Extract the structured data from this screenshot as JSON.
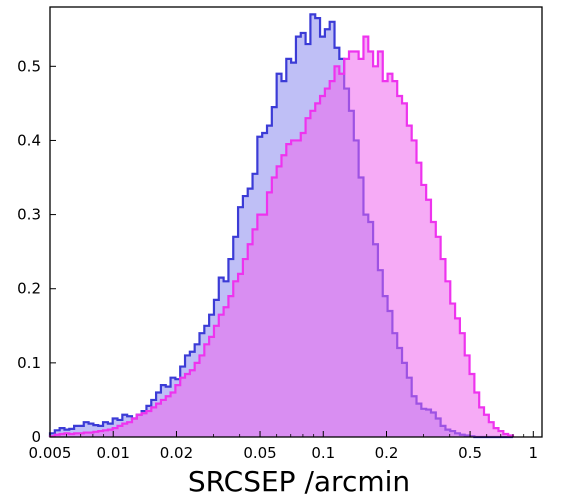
{
  "chart_data": {
    "type": "histogram",
    "x_scale": "log",
    "xlabel": "SRCSEP /arcmin",
    "ylabel": "",
    "xlim": [
      0.005,
      1.1
    ],
    "ylim": [
      0,
      0.58
    ],
    "x_ticks": [
      0.005,
      0.01,
      0.02,
      0.05,
      0.1,
      0.2,
      0.5,
      1
    ],
    "x_tick_labels": [
      "0.005",
      "0.01",
      "0.02",
      "0.05",
      "0.1",
      "0.2",
      "0.5",
      "1"
    ],
    "y_ticks": [
      0,
      0.1,
      0.2,
      0.3,
      0.4,
      0.5
    ],
    "y_tick_labels": [
      "0",
      "0.1",
      "0.2",
      "0.3",
      "0.4",
      "0.5"
    ],
    "grid": false,
    "bin_edges_range": [
      0.005,
      0.8
    ],
    "series": [
      {
        "color": "#3b3bd6",
        "fill": "#b4b4f5",
        "values": [
          0.005,
          0.009,
          0.012,
          0.01,
          0.011,
          0.015,
          0.015,
          0.02,
          0.018,
          0.016,
          0.015,
          0.02,
          0.018,
          0.025,
          0.023,
          0.03,
          0.028,
          0.025,
          0.03,
          0.035,
          0.042,
          0.05,
          0.06,
          0.07,
          0.068,
          0.08,
          0.078,
          0.095,
          0.11,
          0.115,
          0.125,
          0.14,
          0.15,
          0.165,
          0.185,
          0.215,
          0.21,
          0.24,
          0.27,
          0.31,
          0.325,
          0.335,
          0.355,
          0.405,
          0.41,
          0.42,
          0.445,
          0.49,
          0.48,
          0.51,
          0.505,
          0.54,
          0.545,
          0.53,
          0.57,
          0.565,
          0.54,
          0.55,
          0.56,
          0.525,
          0.51,
          0.47,
          0.44,
          0.4,
          0.35,
          0.3,
          0.29,
          0.26,
          0.225,
          0.19,
          0.17,
          0.14,
          0.12,
          0.1,
          0.08,
          0.055,
          0.045,
          0.038,
          0.037,
          0.033,
          0.025,
          0.015,
          0.01,
          0.008,
          0.005,
          0.003,
          0.002,
          0.001,
          0,
          0,
          0,
          0,
          0,
          0,
          0,
          0
        ]
      },
      {
        "color": "#ee33ee",
        "fill": "#ee66ee",
        "values": [
          0.001,
          0.003,
          0.004,
          0.005,
          0.004,
          0.005,
          0.005,
          0.006,
          0.006,
          0.007,
          0.008,
          0.009,
          0.01,
          0.012,
          0.015,
          0.018,
          0.02,
          0.025,
          0.03,
          0.032,
          0.035,
          0.04,
          0.045,
          0.05,
          0.055,
          0.06,
          0.07,
          0.08,
          0.085,
          0.09,
          0.1,
          0.11,
          0.125,
          0.135,
          0.15,
          0.165,
          0.175,
          0.19,
          0.21,
          0.22,
          0.24,
          0.26,
          0.28,
          0.3,
          0.3,
          0.33,
          0.35,
          0.365,
          0.38,
          0.395,
          0.4,
          0.4,
          0.41,
          0.43,
          0.44,
          0.45,
          0.46,
          0.47,
          0.48,
          0.5,
          0.49,
          0.51,
          0.52,
          0.52,
          0.51,
          0.54,
          0.52,
          0.5,
          0.52,
          0.48,
          0.49,
          0.48,
          0.46,
          0.45,
          0.42,
          0.4,
          0.37,
          0.34,
          0.32,
          0.29,
          0.27,
          0.24,
          0.21,
          0.18,
          0.16,
          0.14,
          0.11,
          0.085,
          0.06,
          0.04,
          0.03,
          0.02,
          0.012,
          0.008,
          0.004,
          0.002
        ]
      }
    ]
  }
}
